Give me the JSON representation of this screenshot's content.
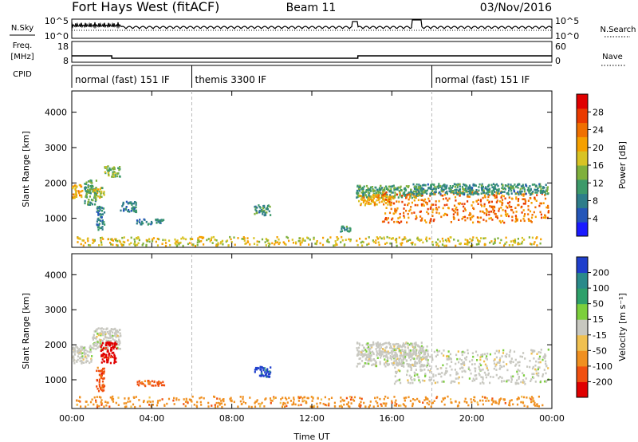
{
  "header": {
    "station": "Fort Hays West (fitACF)",
    "beam": "Beam 11",
    "date": "03/Nov/2016"
  },
  "summary_panels": {
    "nsky_label": "N.Sky",
    "nsky_ticks": [
      "10^5",
      "10^0"
    ],
    "nsearch_label": "N.Search",
    "nsearch_ticks": [
      "10^5",
      "10^0"
    ],
    "freq_label": "Freq.",
    "freq_unit": "[MHz]",
    "freq_ticks": [
      "18",
      "8"
    ],
    "nave_label": "Nave",
    "nave_ticks": [
      "60",
      "0"
    ],
    "cpid_label": "CPID",
    "cpid_modes": [
      {
        "label": "normal (fast) 151 IF",
        "start_h": 0,
        "end_h": 6
      },
      {
        "label": "themis 3300 IF",
        "start_h": 6,
        "end_h": 18
      },
      {
        "label": "normal (fast) 151 IF",
        "start_h": 18,
        "end_h": 24
      }
    ]
  },
  "chart_data": [
    {
      "type": "heatmap",
      "name": "power-panel",
      "ylabel": "Slant Range [km]",
      "yticks": [
        1000,
        2000,
        3000,
        4000
      ],
      "ylim": [
        180,
        4600
      ],
      "xticks": [
        "00:00",
        "04:00",
        "08:00",
        "12:00",
        "16:00",
        "20:00",
        "00:00"
      ],
      "xlim_hours": [
        0,
        24
      ],
      "colorbar": {
        "label": "Power [dB]",
        "ticks": [
          4,
          8,
          12,
          16,
          20,
          24,
          28
        ],
        "range": [
          0,
          32
        ],
        "colors": [
          "#1a1aff",
          "#2456b8",
          "#2e7d8a",
          "#3d9a6a",
          "#7fb03c",
          "#d8c324",
          "#f5a000",
          "#f07000",
          "#ea3a00",
          "#e00000"
        ]
      },
      "regions": [
        {
          "t": [
            0.0,
            0.5
          ],
          "r": [
            1600,
            2000
          ],
          "level": 20
        },
        {
          "t": [
            0.6,
            1.2
          ],
          "r": [
            1400,
            2100
          ],
          "level": 12
        },
        {
          "t": [
            1.0,
            1.6
          ],
          "r": [
            1600,
            1900
          ],
          "level": 16
        },
        {
          "t": [
            1.6,
            2.4
          ],
          "r": [
            2200,
            2500
          ],
          "level": 14
        },
        {
          "t": [
            1.2,
            1.6
          ],
          "r": [
            700,
            1400
          ],
          "level": 8
        },
        {
          "t": [
            2.4,
            3.2
          ],
          "r": [
            1200,
            1500
          ],
          "level": 8
        },
        {
          "t": [
            3.2,
            4.6
          ],
          "r": [
            850,
            1000
          ],
          "level": 9
        },
        {
          "t": [
            9.1,
            9.9
          ],
          "r": [
            1100,
            1400
          ],
          "level": 10
        },
        {
          "t": [
            13.4,
            13.9
          ],
          "r": [
            650,
            800
          ],
          "level": 10
        },
        {
          "t": [
            14.2,
            17.5
          ],
          "r": [
            1600,
            1950
          ],
          "level": 12
        },
        {
          "t": [
            14.3,
            16.0
          ],
          "r": [
            1400,
            1700
          ],
          "level": 20
        },
        {
          "t": [
            15.5,
            23.8
          ],
          "r": [
            900,
            1800
          ],
          "level": 24
        },
        {
          "t": [
            17.0,
            23.8
          ],
          "r": [
            1700,
            2000
          ],
          "level": 10
        },
        {
          "t": [
            0.2,
            23.5
          ],
          "r": [
            250,
            500
          ],
          "level": 18
        }
      ]
    },
    {
      "type": "heatmap",
      "name": "velocity-panel",
      "ylabel": "Slant Range [km]",
      "yticks": [
        1000,
        2000,
        3000,
        4000
      ],
      "ylim": [
        180,
        4600
      ],
      "xlabel": "Time UT",
      "xticks": [
        "00:00",
        "04:00",
        "08:00",
        "12:00",
        "16:00",
        "20:00",
        "00:00"
      ],
      "xlim_hours": [
        0,
        24
      ],
      "colorbar": {
        "label": "Velocity [m s⁻¹]",
        "ticks": [
          200,
          100,
          50,
          15,
          -15,
          -50,
          -100,
          -200
        ],
        "colors": [
          "#1f3fcc",
          "#2a8a8a",
          "#2ea06a",
          "#7ccf3c",
          "#c8c8c0",
          "#f0c050",
          "#f09020",
          "#f05010",
          "#e00000"
        ]
      },
      "regions": [
        {
          "t": [
            0.0,
            1.0
          ],
          "r": [
            1500,
            2000
          ],
          "value": 0
        },
        {
          "t": [
            1.0,
            2.4
          ],
          "r": [
            1900,
            2500
          ],
          "value": 0
        },
        {
          "t": [
            1.4,
            2.2
          ],
          "r": [
            1500,
            2100
          ],
          "value": -200
        },
        {
          "t": [
            1.2,
            1.6
          ],
          "r": [
            700,
            1400
          ],
          "value": -100
        },
        {
          "t": [
            3.2,
            4.6
          ],
          "r": [
            850,
            1000
          ],
          "value": -100
        },
        {
          "t": [
            9.1,
            9.9
          ],
          "r": [
            1100,
            1400
          ],
          "value": 200
        },
        {
          "t": [
            14.2,
            17.8
          ],
          "r": [
            1400,
            2100
          ],
          "value": 0
        },
        {
          "t": [
            16.0,
            23.8
          ],
          "r": [
            900,
            1900
          ],
          "value": 0
        },
        {
          "t": [
            0.2,
            23.5
          ],
          "r": [
            250,
            550
          ],
          "value": -50
        }
      ]
    }
  ]
}
